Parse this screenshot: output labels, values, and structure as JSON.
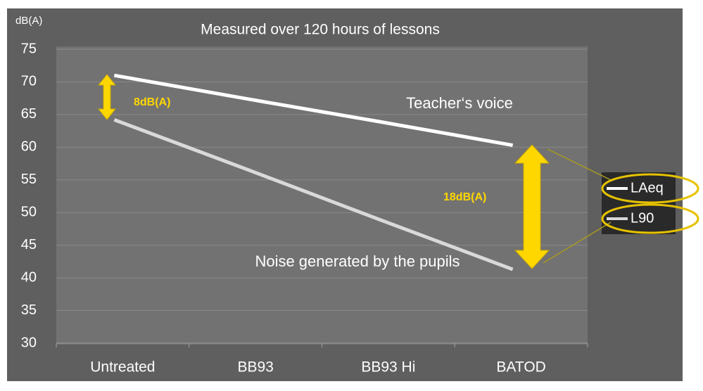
{
  "chart_data": {
    "type": "line",
    "title": "Measured over 120 hours of lessons",
    "y_label": "dB(A)",
    "categories": [
      "Untreated",
      "BB93",
      "BB93 Hi",
      "BATOD"
    ],
    "series": [
      {
        "name": "LAeq",
        "color": "#ffffff",
        "values": [
          71,
          67.4,
          63.9,
          60.3
        ]
      },
      {
        "name": "L90",
        "color": "#d9d9d9",
        "values": [
          64.2,
          56.6,
          48.9,
          41.3
        ]
      }
    ],
    "ylim": [
      30,
      75
    ],
    "yticks": [
      30,
      35,
      40,
      45,
      50,
      55,
      60,
      65,
      70,
      75
    ],
    "grid": true,
    "legend": "right",
    "annotations": [
      "Teacher‘s voice",
      "Noise generated by the pupils",
      "8dB(A)",
      "18dB(A)"
    ]
  }
}
